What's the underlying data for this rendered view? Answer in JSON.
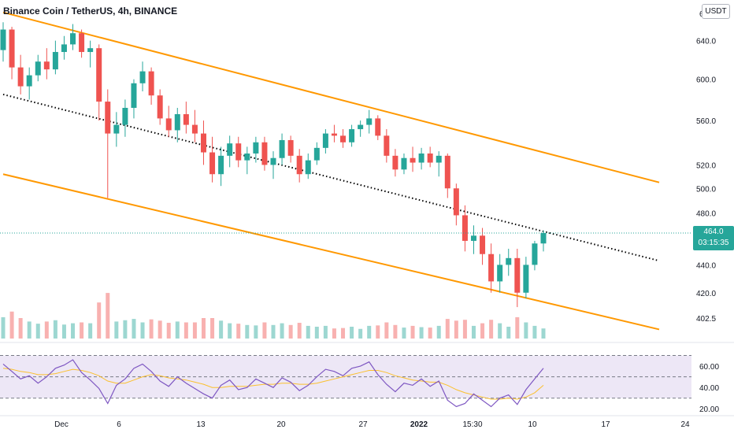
{
  "header": {
    "title": "Binance Coin / TetherUS, 4h, BINANCE",
    "currency_button": "USDT",
    "clipped_top_label": "6"
  },
  "last_price": {
    "value": "464.0",
    "countdown": "03:15:35",
    "color": "#26a69a"
  },
  "colors": {
    "up": "#26a69a",
    "down": "#ef5350",
    "channel": "#ff9800",
    "midline": "#000000",
    "rsi_line": "#7e57c2",
    "rsi_ma": "#fbc02d",
    "rsi_band": "#ede7f6"
  },
  "chart_data": [
    {
      "type": "candlestick",
      "title": "Binance Coin / TetherUS, 4h, BINANCE",
      "scale": "log",
      "y_ticks": [
        640.0,
        600.0,
        560.0,
        520.0,
        500.0,
        480.0,
        440.0,
        420.0,
        402.5
      ],
      "x_ticks": [
        "Dec",
        "6",
        "13",
        "20",
        "27",
        "2022",
        "15:30",
        "10",
        "17",
        "24"
      ],
      "ylim": [
        388,
        685
      ],
      "last_price": 464.0,
      "ohlc_approx": [
        [
          630,
          660,
          618,
          652
        ],
        [
          652,
          655,
          600,
          612
        ],
        [
          612,
          625,
          585,
          593
        ],
        [
          593,
          612,
          580,
          604
        ],
        [
          604,
          625,
          598,
          618
        ],
        [
          618,
          632,
          600,
          610
        ],
        [
          610,
          640,
          605,
          628
        ],
        [
          628,
          645,
          620,
          636
        ],
        [
          636,
          658,
          630,
          648
        ],
        [
          648,
          652,
          622,
          628
        ],
        [
          628,
          640,
          612,
          632
        ],
        [
          632,
          636,
          560,
          578
        ],
        [
          578,
          590,
          492,
          548
        ],
        [
          548,
          568,
          536,
          556
        ],
        [
          556,
          580,
          545,
          572
        ],
        [
          572,
          600,
          562,
          596
        ],
        [
          596,
          618,
          588,
          608
        ],
        [
          608,
          612,
          575,
          584
        ],
        [
          584,
          590,
          556,
          562
        ],
        [
          562,
          574,
          545,
          551
        ],
        [
          551,
          572,
          540,
          566
        ],
        [
          566,
          578,
          548,
          556
        ],
        [
          556,
          570,
          540,
          548
        ],
        [
          548,
          560,
          520,
          531
        ],
        [
          531,
          545,
          505,
          512
        ],
        [
          512,
          536,
          502,
          528
        ],
        [
          528,
          546,
          518,
          539
        ],
        [
          539,
          545,
          518,
          524
        ],
        [
          524,
          536,
          512,
          530
        ],
        [
          530,
          545,
          522,
          540
        ],
        [
          540,
          545,
          515,
          520
        ],
        [
          520,
          532,
          508,
          526
        ],
        [
          526,
          548,
          520,
          542
        ],
        [
          542,
          546,
          522,
          528
        ],
        [
          528,
          534,
          505,
          512
        ],
        [
          512,
          530,
          508,
          524
        ],
        [
          524,
          540,
          520,
          535
        ],
        [
          535,
          552,
          530,
          548
        ],
        [
          548,
          556,
          540,
          546
        ],
        [
          546,
          552,
          535,
          540
        ],
        [
          540,
          556,
          536,
          552
        ],
        [
          552,
          560,
          545,
          556
        ],
        [
          556,
          570,
          548,
          562
        ],
        [
          562,
          565,
          542,
          546
        ],
        [
          546,
          552,
          522,
          528
        ],
        [
          528,
          534,
          510,
          516
        ],
        [
          516,
          530,
          512,
          526
        ],
        [
          526,
          536,
          514,
          522
        ],
        [
          522,
          535,
          516,
          530
        ],
        [
          530,
          536,
          518,
          522
        ],
        [
          522,
          532,
          510,
          528
        ],
        [
          528,
          530,
          492,
          500
        ],
        [
          500,
          504,
          470,
          478
        ],
        [
          478,
          486,
          450,
          458
        ],
        [
          458,
          470,
          448,
          462
        ],
        [
          462,
          468,
          440,
          448
        ],
        [
          448,
          456,
          420,
          428
        ],
        [
          428,
          448,
          420,
          440
        ],
        [
          440,
          452,
          432,
          445
        ],
        [
          445,
          452,
          410,
          420
        ],
        [
          420,
          446,
          416,
          440
        ],
        [
          440,
          458,
          436,
          456
        ],
        [
          456,
          466,
          450,
          464
        ]
      ],
      "overlays": [
        {
          "type": "parallel_channel",
          "color": "#ff9800",
          "upper": [
            [
              0,
              671
            ],
            [
              170,
              505
            ]
          ],
          "lower": [
            [
              0,
              512
            ],
            [
              170,
              395
            ]
          ]
        },
        {
          "type": "trend_midline",
          "style": "dotted",
          "color": "#000000",
          "points": [
            [
              0,
              585
            ],
            [
              170,
              443
            ]
          ]
        }
      ]
    },
    {
      "type": "line",
      "title": "RSI",
      "y_ticks": [
        60.0,
        40.0,
        20.0
      ],
      "ylim": [
        15,
        80
      ],
      "bands": [
        70,
        50,
        30
      ],
      "series": [
        {
          "values": [
            62,
            55,
            48,
            51,
            44,
            50,
            58,
            61,
            66,
            54,
            47,
            39,
            25,
            42,
            48,
            58,
            62,
            55,
            46,
            41,
            50,
            44,
            39,
            34,
            30,
            42,
            47,
            38,
            40,
            48,
            44,
            40,
            49,
            45,
            37,
            42,
            50,
            57,
            55,
            51,
            58,
            60,
            64,
            52,
            43,
            36,
            44,
            42,
            48,
            41,
            46,
            28,
            22,
            25,
            34,
            28,
            22,
            30,
            33,
            24,
            38,
            48,
            58
          ]
        },
        {
          "values": [
            58,
            57,
            55,
            54,
            52,
            52,
            53,
            55,
            57,
            56,
            54,
            51,
            46,
            44,
            44,
            47,
            50,
            52,
            51,
            49,
            48,
            47,
            45,
            43,
            40,
            40,
            41,
            41,
            41,
            42,
            43,
            43,
            44,
            44,
            43,
            43,
            44,
            46,
            48,
            50,
            52,
            54,
            56,
            56,
            54,
            51,
            49,
            47,
            46,
            45,
            45,
            42,
            38,
            35,
            33,
            31,
            29,
            29,
            30,
            29,
            31,
            35,
            42
          ]
        }
      ]
    }
  ]
}
